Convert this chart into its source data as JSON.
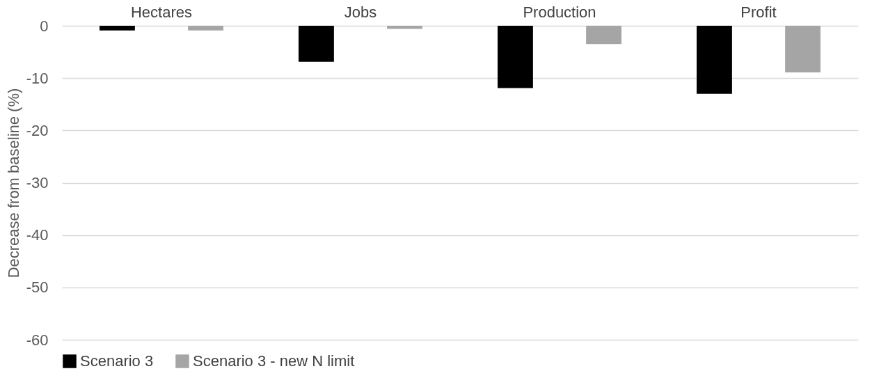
{
  "chart_data": {
    "type": "bar",
    "ylabel": "Decrease from baseline (%)",
    "categories": [
      "Hectares",
      "Jobs",
      "Production",
      "Profit"
    ],
    "series": [
      {
        "name": "Scenario 3",
        "color": "#000000",
        "values": [
          -0.9,
          -6.9,
          -11.9,
          -13
        ]
      },
      {
        "name": "Scenario 3 - new N limit",
        "color": "#a5a5a5",
        "values": [
          -0.9,
          -0.6,
          -3.5,
          -8.9
        ]
      }
    ],
    "ylim": [
      -60,
      0
    ],
    "yticks": [
      0,
      -10,
      -20,
      -30,
      -40,
      -50,
      -60
    ],
    "grid": "y",
    "legend": "bottom"
  }
}
